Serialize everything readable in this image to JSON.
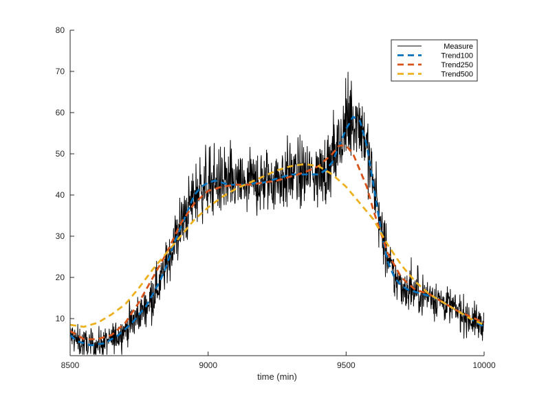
{
  "chart_data": {
    "type": "line",
    "title": "",
    "xlabel": "time (min)",
    "ylabel": "",
    "xlim": [
      8500,
      10000
    ],
    "ylim": [
      1,
      80
    ],
    "xticks": [
      8500,
      9000,
      9500,
      10000
    ],
    "yticks": [
      10,
      20,
      30,
      40,
      50,
      60,
      70,
      80
    ],
    "legend_position": "top-right",
    "series": [
      {
        "name": "Measure",
        "style": "solid",
        "color": "#000000",
        "x": [
          8500,
          8525,
          8550,
          8575,
          8600,
          8625,
          8650,
          8675,
          8700,
          8725,
          8750,
          8775,
          8800,
          8825,
          8850,
          8875,
          8900,
          8925,
          8950,
          8975,
          9000,
          9025,
          9050,
          9075,
          9100,
          9125,
          9150,
          9175,
          9200,
          9225,
          9250,
          9275,
          9300,
          9325,
          9350,
          9375,
          9400,
          9425,
          9450,
          9475,
          9500,
          9525,
          9550,
          9575,
          9600,
          9625,
          9650,
          9675,
          9700,
          9725,
          9750,
          9775,
          9800,
          9825,
          9850,
          9875,
          9900,
          9925,
          9950,
          9975,
          10000
        ],
        "values": [
          6,
          4.5,
          4,
          3.5,
          3.8,
          4,
          5,
          6,
          7.5,
          9,
          11,
          13,
          16,
          19,
          23,
          28,
          32,
          36,
          40,
          42,
          43,
          43.5,
          43,
          42.5,
          42.5,
          42.5,
          42.5,
          43,
          43,
          43.5,
          44,
          44.5,
          45,
          45,
          45,
          45,
          45,
          46,
          48,
          52,
          56,
          59,
          58,
          52,
          42,
          32,
          24,
          20,
          18,
          17,
          16.5,
          16,
          15.5,
          15,
          14,
          13,
          12,
          11,
          10,
          9,
          8
        ],
        "noise_amplitude": 5
      },
      {
        "name": "Trend100",
        "style": "dashed",
        "color": "#0072BD",
        "x": [
          8500,
          8525,
          8550,
          8575,
          8600,
          8625,
          8650,
          8675,
          8700,
          8725,
          8750,
          8775,
          8800,
          8825,
          8850,
          8875,
          8900,
          8925,
          8950,
          8975,
          9000,
          9025,
          9050,
          9075,
          9100,
          9125,
          9150,
          9175,
          9200,
          9225,
          9250,
          9275,
          9300,
          9325,
          9350,
          9375,
          9400,
          9425,
          9450,
          9475,
          9500,
          9525,
          9550,
          9575,
          9600,
          9625,
          9650,
          9675,
          9700,
          9725,
          9750,
          9775,
          9800,
          9825,
          9850,
          9875,
          9900,
          9925,
          9950,
          9975,
          10000
        ],
        "values": [
          6,
          4.5,
          4,
          3.5,
          3.8,
          4,
          5,
          6,
          7.5,
          9,
          11,
          13,
          16,
          19,
          23,
          28,
          32,
          36,
          40,
          42,
          43,
          43.5,
          43,
          42.5,
          42.5,
          42.5,
          42.5,
          43,
          43,
          43.5,
          44,
          44.5,
          45,
          45,
          45,
          45,
          45,
          46,
          48,
          52,
          56,
          59,
          58,
          52,
          42,
          32,
          24,
          20,
          18,
          17,
          16.5,
          16,
          15.5,
          15,
          14,
          13,
          12,
          11,
          10,
          9,
          8
        ]
      },
      {
        "name": "Trend250",
        "style": "dashed",
        "color": "#D95319",
        "x": [
          8500,
          8550,
          8600,
          8650,
          8700,
          8750,
          8800,
          8850,
          8900,
          8950,
          9000,
          9050,
          9100,
          9150,
          9200,
          9250,
          9300,
          9350,
          9400,
          9450,
          9475,
          9500,
          9525,
          9550,
          9575,
          9600,
          9650,
          9700,
          9750,
          9800,
          9850,
          9900,
          9950,
          10000
        ],
        "values": [
          7,
          5,
          5,
          6,
          9,
          14,
          20,
          26,
          33,
          38,
          41,
          42,
          42.5,
          42.5,
          43,
          43.5,
          44.5,
          45.5,
          47,
          50,
          52,
          52,
          50,
          46,
          42,
          36,
          26,
          20,
          17,
          16,
          14,
          12,
          10.5,
          9
        ]
      },
      {
        "name": "Trend500",
        "style": "dashed",
        "color": "#EDB120",
        "x": [
          8500,
          8550,
          8600,
          8650,
          8700,
          8750,
          8800,
          8850,
          8900,
          8950,
          9000,
          9050,
          9100,
          9150,
          9200,
          9250,
          9300,
          9350,
          9400,
          9450,
          9500,
          9550,
          9600,
          9650,
          9700,
          9750,
          9800,
          9850,
          9900,
          9950,
          10000
        ],
        "values": [
          8.5,
          8,
          9,
          11,
          13.5,
          17.5,
          22,
          26,
          30,
          34,
          37,
          39.5,
          41.5,
          43,
          44.5,
          46,
          47,
          47.5,
          47,
          45,
          42,
          38,
          34,
          28,
          23,
          19,
          16,
          14,
          12,
          10,
          8.5
        ]
      }
    ]
  }
}
